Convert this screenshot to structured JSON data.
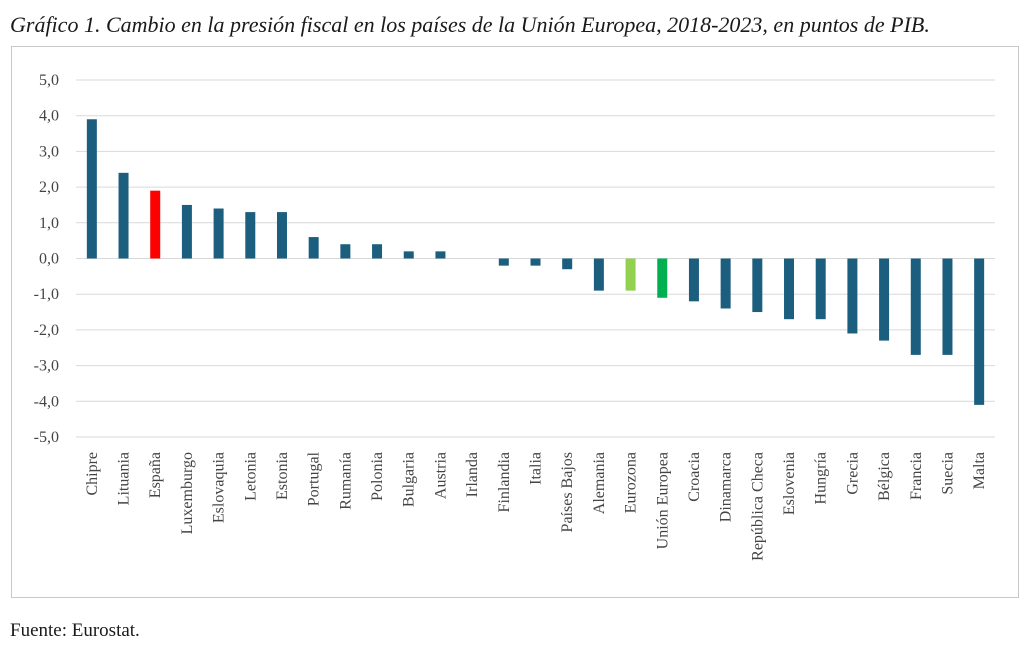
{
  "title": "Gráfico 1. Cambio en la presión fiscal en los países de la Unión Europea, 2018-2023, en puntos de PIB.",
  "source": "Fuente: Eurostat.",
  "chart_data": {
    "type": "bar",
    "ylim": [
      -5,
      5
    ],
    "yticks": [
      5,
      4,
      3,
      2,
      1,
      0,
      -1,
      -2,
      -3,
      -4,
      -5
    ],
    "ytick_labels": [
      "5,0",
      "4,0",
      "3,0",
      "2,0",
      "1,0",
      "0,0",
      "-1,0",
      "-2,0",
      "-3,0",
      "-4,0",
      "-5,0"
    ],
    "grid": true,
    "categories": [
      "Chipre",
      "Lituania",
      "España",
      "Luxemburgo",
      "Eslovaquia",
      "Letonia",
      "Estonia",
      "Portugal",
      "Rumanía",
      "Polonia",
      "Bulgaria",
      "Austria",
      "Irlanda",
      "Finlandia",
      "Italia",
      "Países Bajos",
      "Alemania",
      "Eurozona",
      "Unión Europea",
      "Croacia",
      "Dinamarca",
      "República Checa",
      "Eslovenia",
      "Hungría",
      "Grecia",
      "Bélgica",
      "Francia",
      "Suecia",
      "Malta"
    ],
    "values": [
      3.9,
      2.4,
      1.9,
      1.5,
      1.4,
      1.3,
      1.3,
      0.6,
      0.4,
      0.4,
      0.2,
      0.2,
      0.0,
      -0.2,
      -0.2,
      -0.3,
      -0.9,
      -0.9,
      -1.1,
      -1.2,
      -1.4,
      -1.5,
      -1.7,
      -1.7,
      -2.1,
      -2.3,
      -2.7,
      -2.7,
      -4.1
    ],
    "colors": {
      "default": "#1c5e7e",
      "highlight": {
        "España": "#ff0000",
        "Eurozona": "#92d050",
        "Unión Europea": "#00b050"
      }
    }
  }
}
